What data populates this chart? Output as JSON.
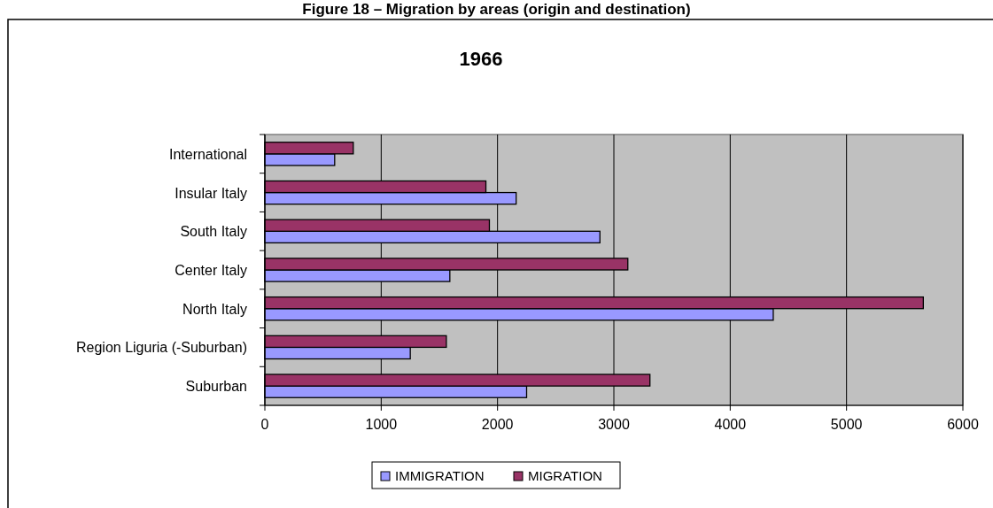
{
  "chart_data": {
    "type": "bar",
    "orientation": "horizontal",
    "title": "Figure 18 – Migration by areas (origin and destination)",
    "subtitle": "1966",
    "categories": [
      "International",
      "Insular Italy",
      "South Italy",
      "Center Italy",
      "North Italy",
      "Region Liguria (-Suburban)",
      "Suburban"
    ],
    "series": [
      {
        "name": "IMMIGRATION",
        "color": "#9999ff",
        "values": [
          600,
          2160,
          2880,
          1590,
          4370,
          1250,
          2250
        ]
      },
      {
        "name": "MIGRATION",
        "color": "#993366",
        "values": [
          760,
          1900,
          1930,
          3120,
          5660,
          1560,
          3310
        ]
      }
    ],
    "xlim": [
      0,
      6000
    ],
    "xticks": [
      0,
      1000,
      2000,
      3000,
      4000,
      5000,
      6000
    ],
    "grid": "x",
    "legend": "bottom"
  }
}
